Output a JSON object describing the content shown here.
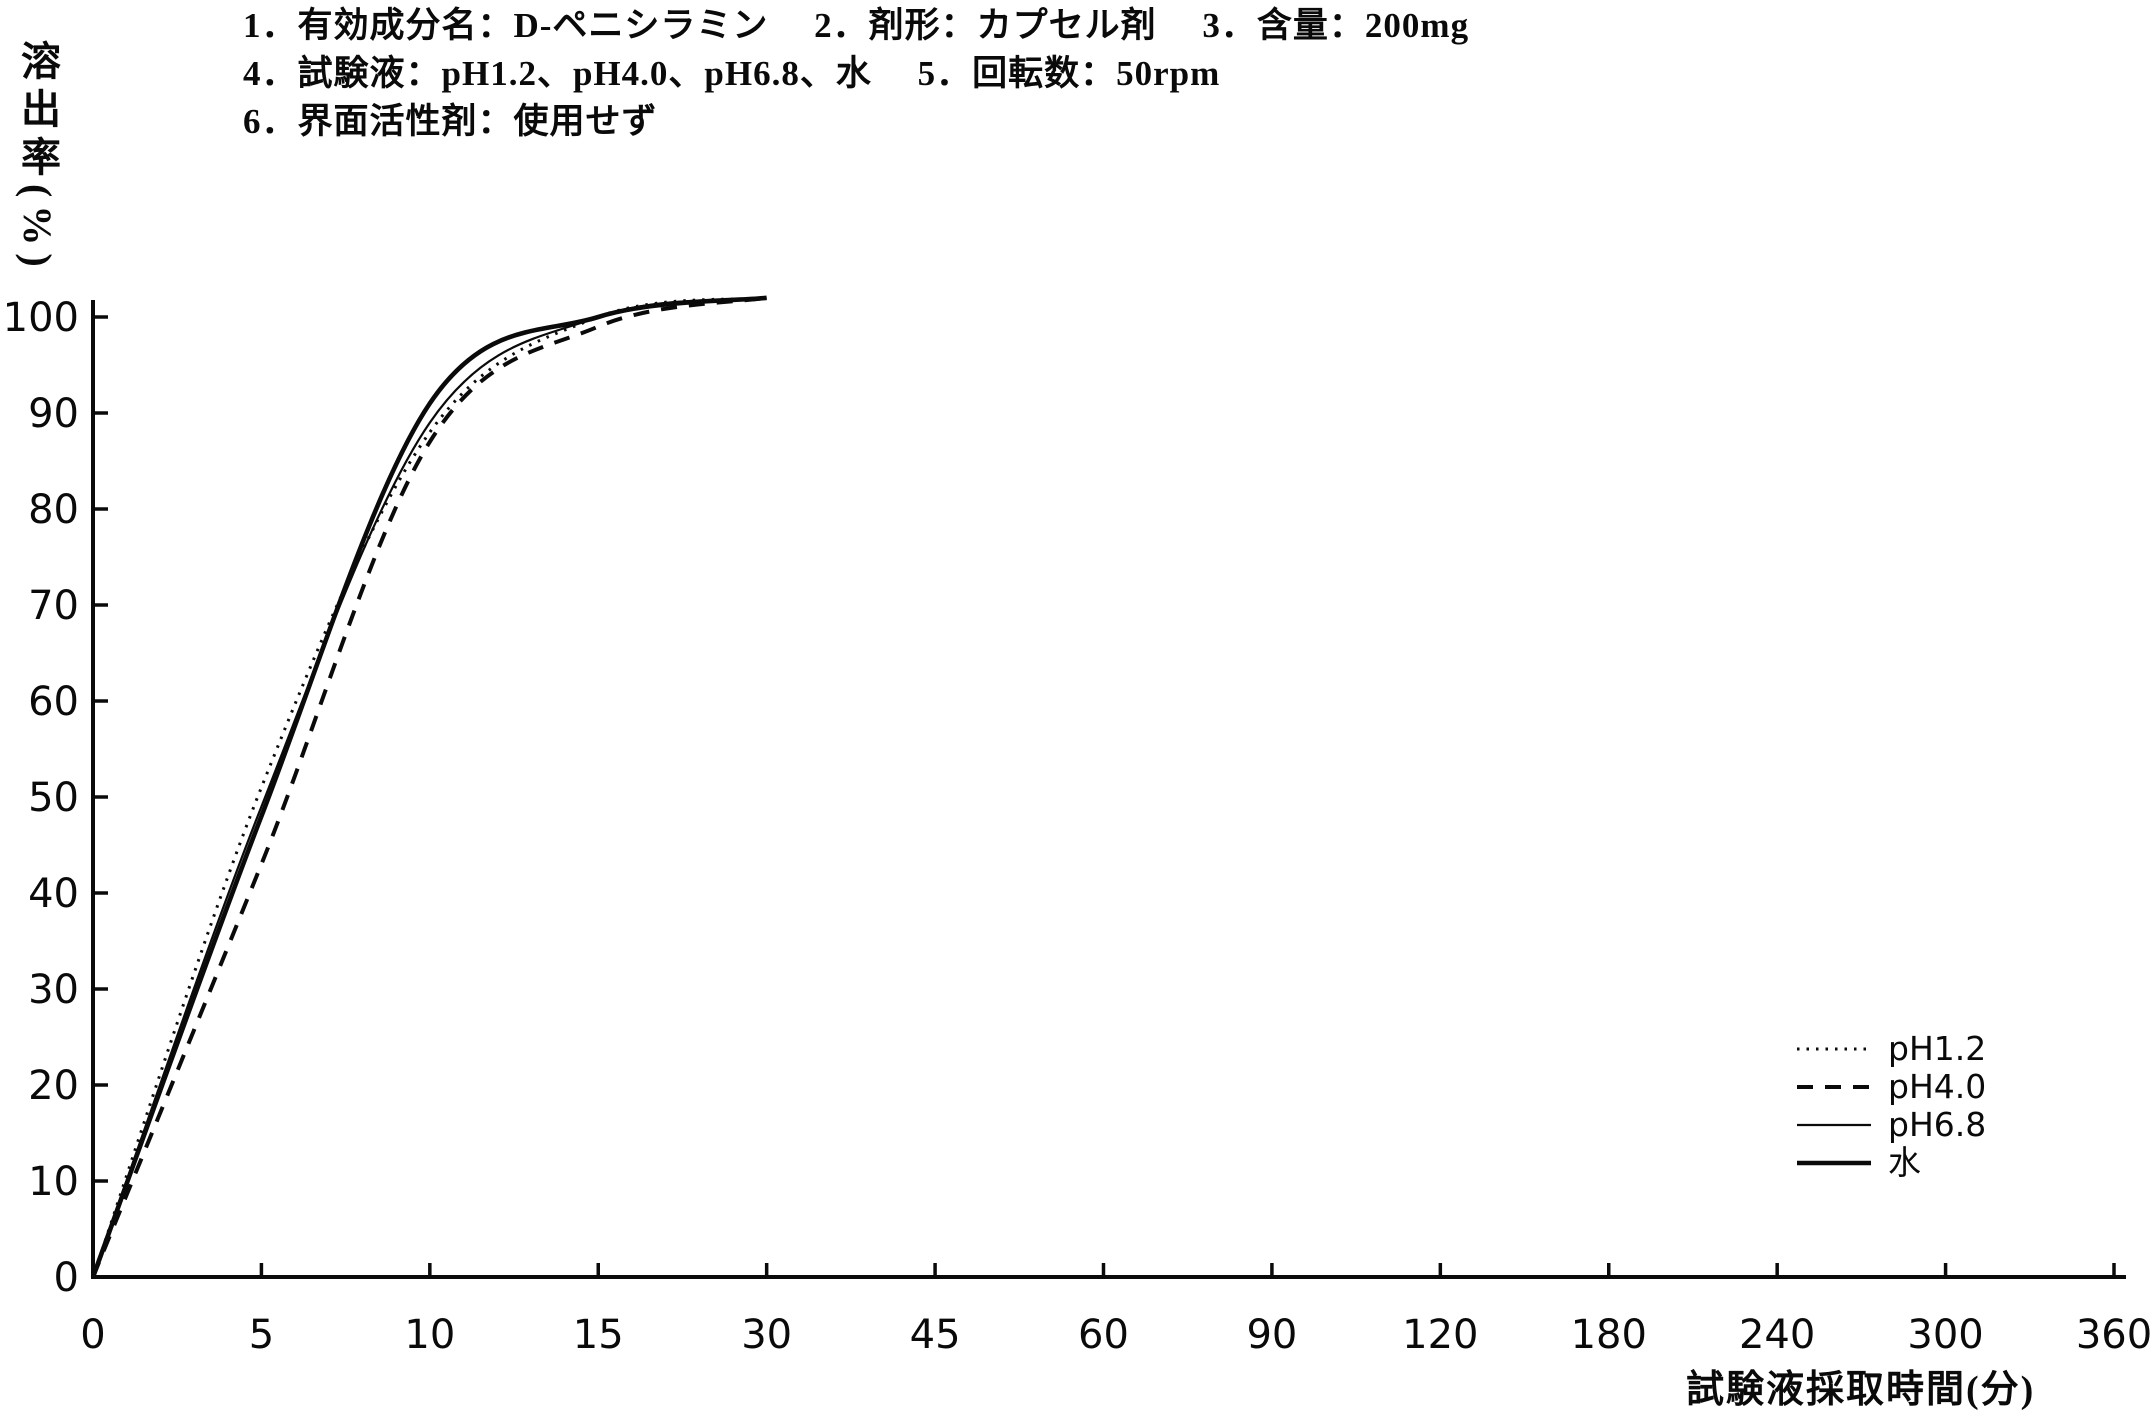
{
  "page": {
    "background": "#ffffff",
    "ink": "#0a0a0a"
  },
  "header": {
    "line1": "1．有効成分名：D-ペニシラミン　 2．剤形：カプセル剤　 3．含量：200mg",
    "line2": "4．試験液：pH1.2、pH4.0、pH6.8、水　 5．回転数：50rpm",
    "line3": "6．界面活性剤：使用せず"
  },
  "chart_data": {
    "type": "line",
    "title": "",
    "xlabel": "試験液採取時間(分)",
    "ylabel": "溶出率(%)",
    "x_scale": "categorical-equal-spacing",
    "x_ticks": [
      0,
      5,
      10,
      15,
      30,
      45,
      60,
      90,
      120,
      180,
      240,
      300,
      360
    ],
    "y_ticks": [
      0,
      10,
      20,
      30,
      40,
      50,
      60,
      70,
      80,
      90,
      100
    ],
    "ylim": [
      0,
      100
    ],
    "grid": false,
    "legend_position": "right-lower",
    "sample_times_min": [
      0,
      5,
      10,
      15,
      30
    ],
    "series": [
      {
        "name": "pH1.2",
        "line_style": "dotted",
        "values": [
          0,
          51,
          88,
          100,
          102
        ]
      },
      {
        "name": "pH4.0",
        "line_style": "dashed",
        "values": [
          0,
          43,
          87,
          99,
          102
        ]
      },
      {
        "name": "pH6.8",
        "line_style": "solid-thin",
        "values": [
          0,
          49,
          89,
          100,
          102
        ]
      },
      {
        "name": "水",
        "line_style": "solid-thick",
        "values": [
          0,
          48,
          91,
          100,
          102
        ]
      }
    ]
  }
}
